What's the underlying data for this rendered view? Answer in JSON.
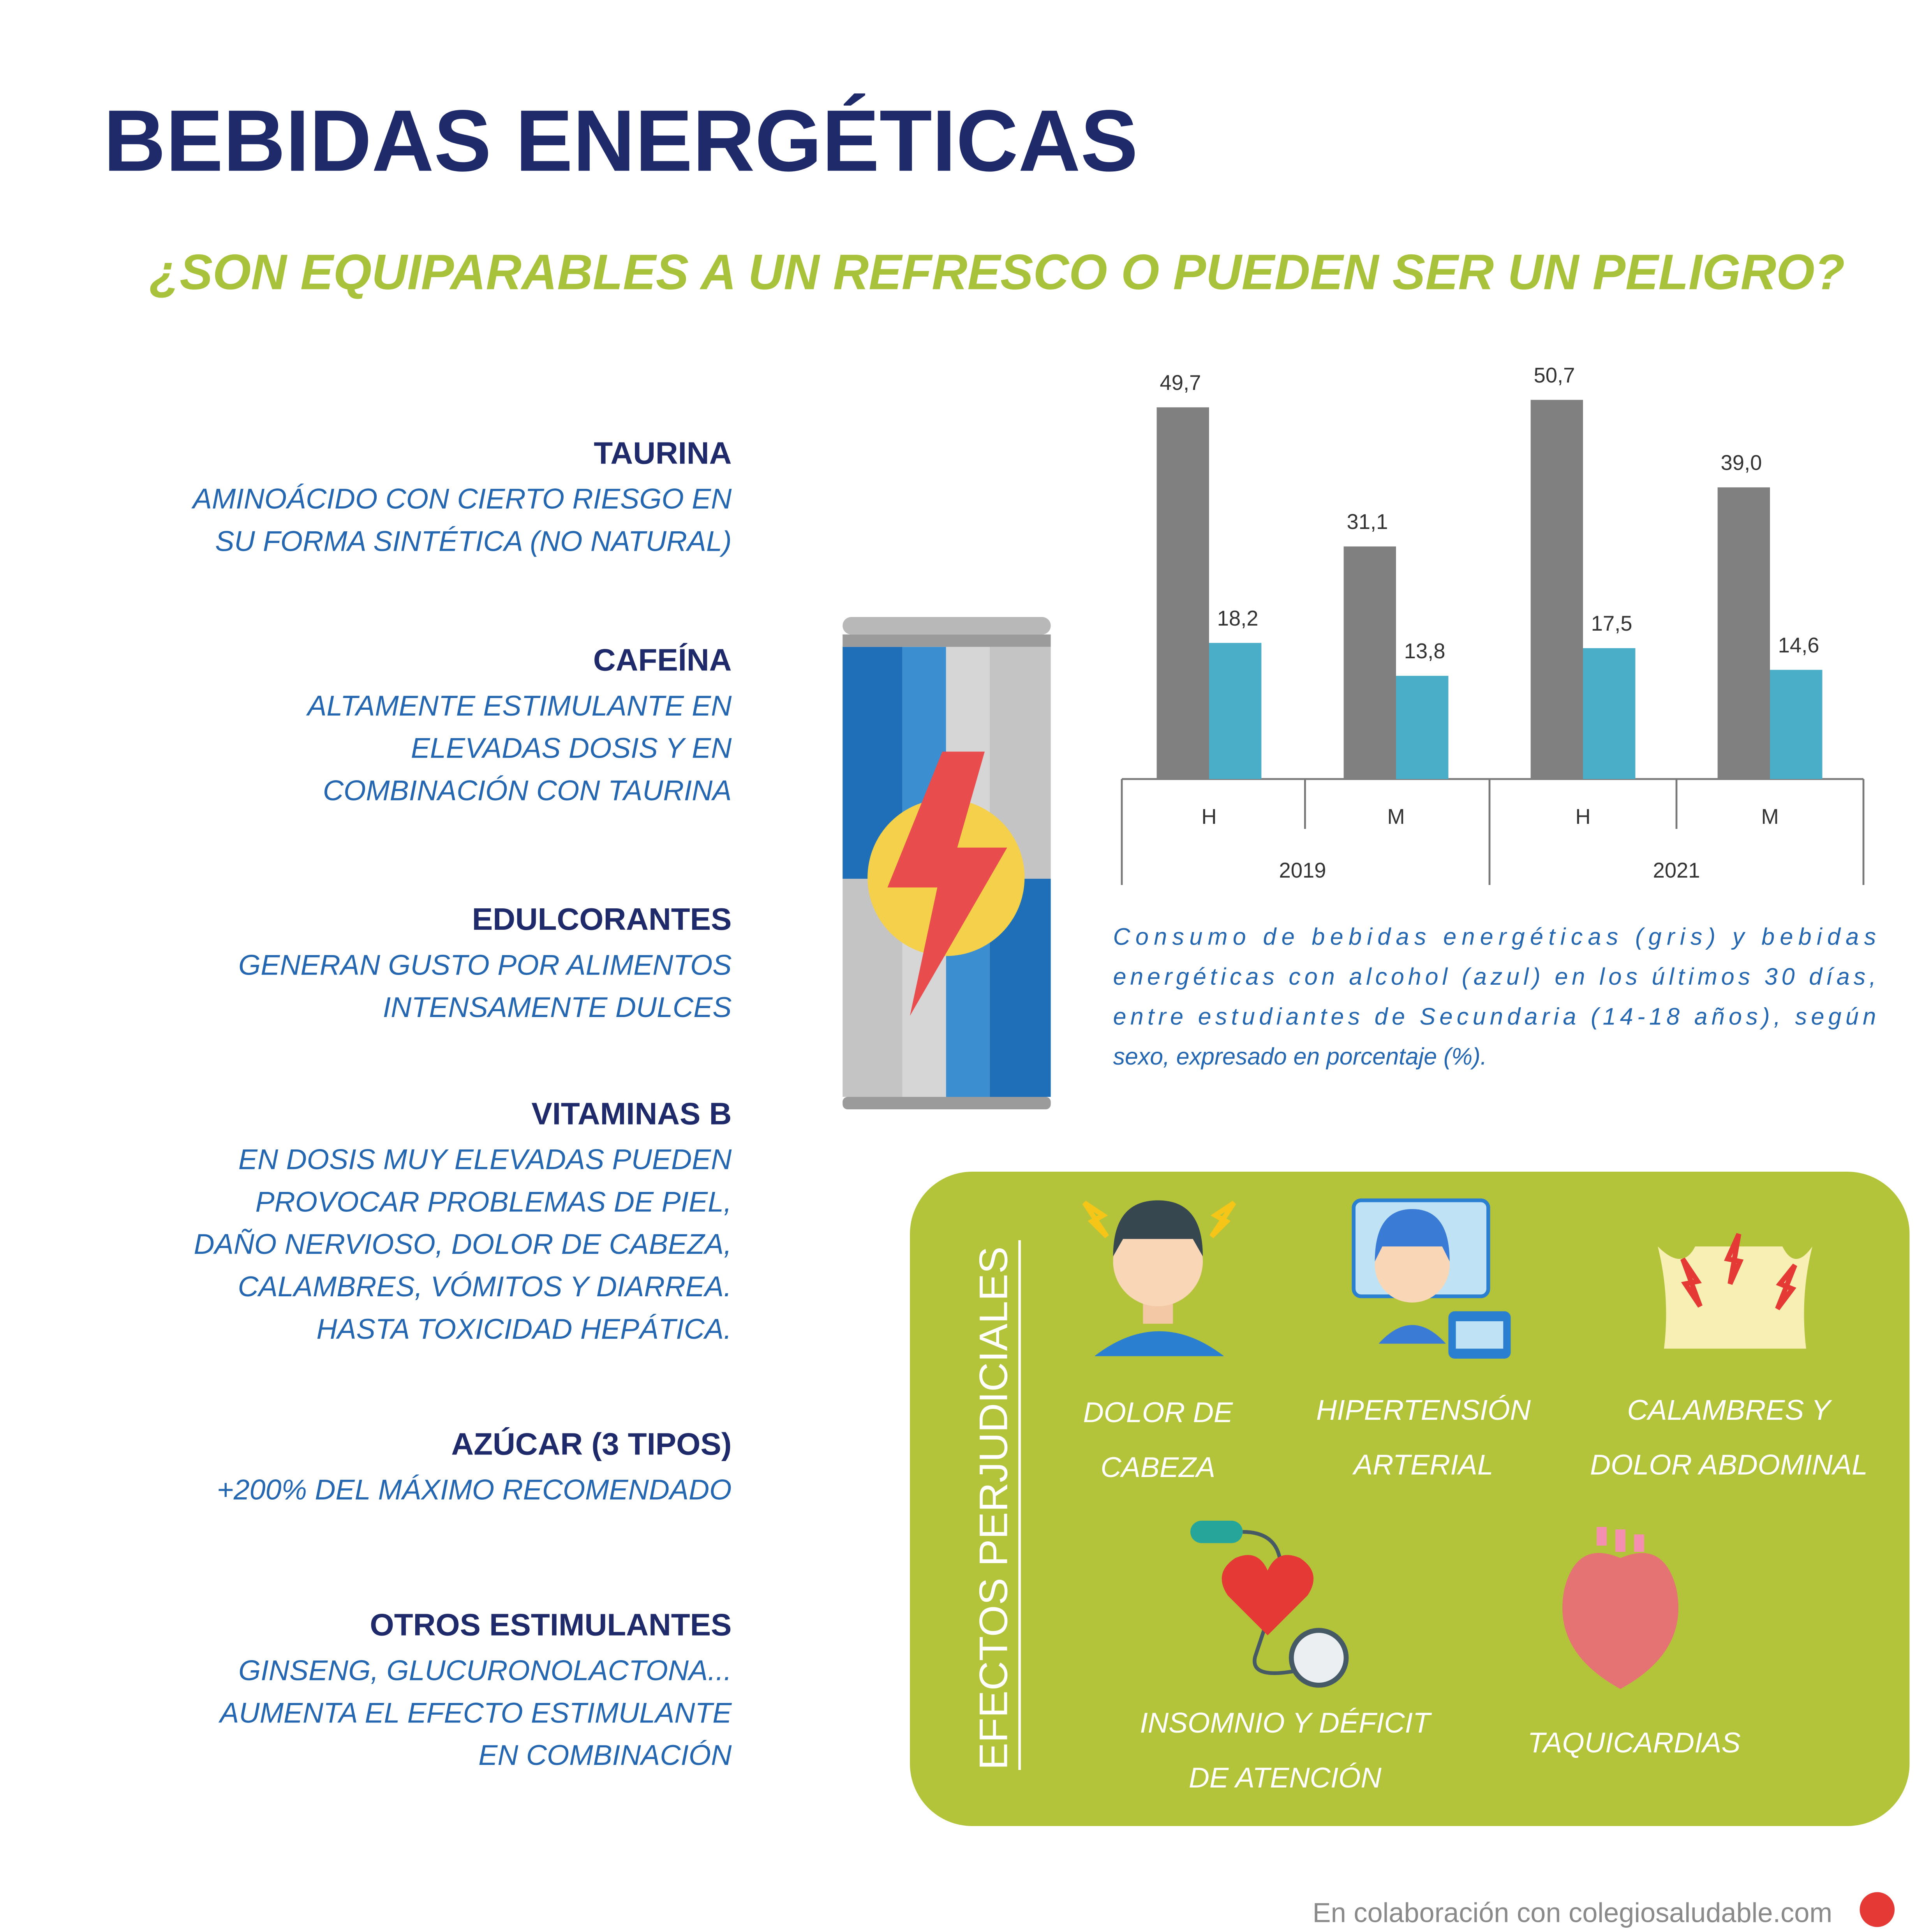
{
  "header": {
    "title": "BEBIDAS ENERGÉTICAS",
    "subtitle": "¿SON EQUIPARABLES A UN REFRESCO O PUEDEN SER UN PELIGRO?"
  },
  "ingredients": [
    {
      "title": "TAURINA",
      "lines": [
        "AMINOÁCIDO CON CIERTO RIESGO EN",
        "SU FORMA SINTÉTICA (NO NATURAL)"
      ]
    },
    {
      "title": "CAFEÍNA",
      "lines": [
        "ALTAMENTE ESTIMULANTE EN",
        "ELEVADAS DOSIS Y EN",
        "COMBINACIÓN CON TAURINA"
      ]
    },
    {
      "title": "EDULCORANTES",
      "lines": [
        "GENERAN GUSTO POR ALIMENTOS",
        "INTENSAMENTE DULCES"
      ]
    },
    {
      "title": "VITAMINAS B",
      "lines": [
        "EN DOSIS MUY ELEVADAS PUEDEN",
        "PROVOCAR PROBLEMAS DE PIEL,",
        "DAÑO NERVIOSO, DOLOR DE CABEZA,",
        "CALAMBRES, VÓMITOS Y DIARREA.",
        "HASTA TOXICIDAD HEPÁTICA."
      ]
    },
    {
      "title": "AZÚCAR (3 TIPOS)",
      "lines": [
        "+200% DEL MÁXIMO RECOMENDADO"
      ]
    },
    {
      "title": "OTROS ESTIMULANTES",
      "lines": [
        "GINSENG, GLUCURONOLACTONA...",
        "AUMENTA EL EFECTO ESTIMULANTE",
        "EN COMBINACIÓN"
      ]
    }
  ],
  "chart_data": {
    "type": "bar",
    "categories": [
      "H",
      "M",
      "H",
      "M"
    ],
    "groups": [
      "2019",
      "2021"
    ],
    "series": [
      {
        "color": "#808080",
        "values": [
          49.7,
          31.1,
          50.7,
          39.0
        ],
        "value_labels": [
          "49,7",
          "31,1",
          "50,7",
          "39,0"
        ]
      },
      {
        "color": "#4aaec8",
        "values": [
          18.2,
          13.8,
          17.5,
          14.6
        ],
        "value_labels": [
          "18,2",
          "13,8",
          "17,5",
          "14,6"
        ]
      }
    ]
  },
  "caption": [
    "Consumo de bebidas energéticas (gris) y bebidas",
    "energéticas con alcohol (azul) en los últimos 30 días,",
    "entre estudiantes de Secundaria (14-18 años), según",
    "sexo, expresado en porcentaje (%)."
  ],
  "effects": {
    "title": "EFECTOS PERJUDICIALES",
    "items": [
      {
        "label": [
          "DOLOR DE",
          "CABEZA"
        ]
      },
      {
        "label": [
          "HIPERTENSIÓN",
          "ARTERIAL"
        ]
      },
      {
        "label": [
          "CALAMBRES Y",
          "DOLOR ABDOMINAL"
        ]
      },
      {
        "label": [
          "INSOMNIO Y DÉFICIT",
          "DE ATENCIÓN"
        ]
      },
      {
        "label": [
          "TAQUICARDIAS"
        ]
      }
    ]
  },
  "footer": "En colaboración con colegiosaludable.com"
}
